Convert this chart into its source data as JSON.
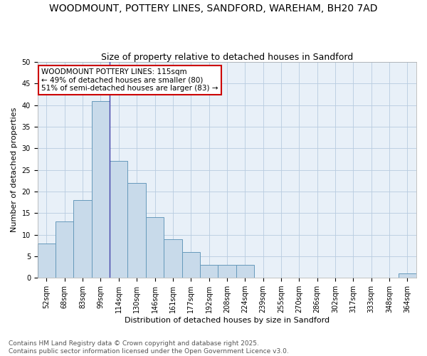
{
  "title1": "WOODMOUNT, POTTERY LINES, SANDFORD, WAREHAM, BH20 7AD",
  "title2": "Size of property relative to detached houses in Sandford",
  "xlabel": "Distribution of detached houses by size in Sandford",
  "ylabel": "Number of detached properties",
  "bin_labels": [
    "52sqm",
    "68sqm",
    "83sqm",
    "99sqm",
    "114sqm",
    "130sqm",
    "146sqm",
    "161sqm",
    "177sqm",
    "192sqm",
    "208sqm",
    "224sqm",
    "239sqm",
    "255sqm",
    "270sqm",
    "286sqm",
    "302sqm",
    "317sqm",
    "333sqm",
    "348sqm",
    "364sqm"
  ],
  "bar_heights": [
    8,
    13,
    18,
    41,
    27,
    22,
    14,
    9,
    6,
    3,
    3,
    3,
    0,
    0,
    0,
    0,
    0,
    0,
    0,
    0,
    1
  ],
  "bar_color": "#c8daea",
  "bar_edge_color": "#6699bb",
  "vline_x_index": 4,
  "vline_color": "#4444aa",
  "annotation_text": "WOODMOUNT POTTERY LINES: 115sqm\n← 49% of detached houses are smaller (80)\n51% of semi-detached houses are larger (83) →",
  "annotation_box_edge": "#cc0000",
  "annotation_box_face": "#ffffff",
  "ylim": [
    0,
    50
  ],
  "yticks": [
    0,
    5,
    10,
    15,
    20,
    25,
    30,
    35,
    40,
    45,
    50
  ],
  "grid_color": "#b8cce0",
  "background_color": "#e8f0f8",
  "fig_background": "#ffffff",
  "footer_text": "Contains HM Land Registry data © Crown copyright and database right 2025.\nContains public sector information licensed under the Open Government Licence v3.0.",
  "title_fontsize": 10,
  "subtitle_fontsize": 9,
  "axis_label_fontsize": 8,
  "tick_fontsize": 7,
  "annotation_fontsize": 7.5,
  "footer_fontsize": 6.5
}
